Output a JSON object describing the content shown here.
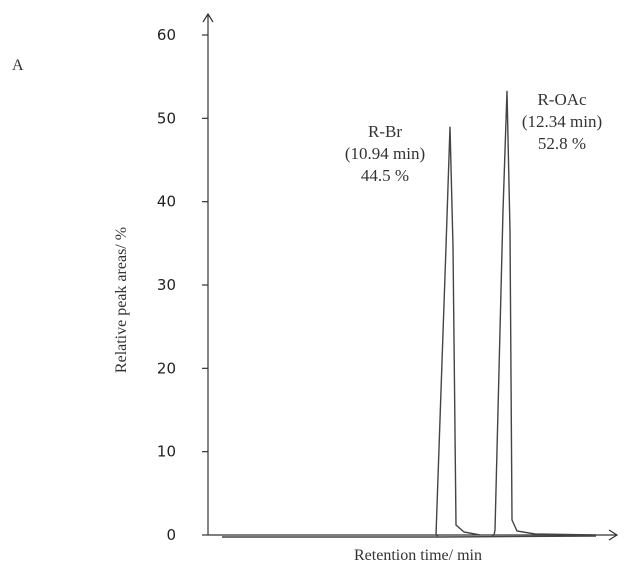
{
  "panel_label": "A",
  "chart_data": {
    "type": "line",
    "title": "",
    "xlabel": "Retention time/ min",
    "ylabel": "Relative peak areas/ %",
    "ylim": [
      0,
      60
    ],
    "yticks": [
      0,
      10,
      20,
      30,
      40,
      50,
      60
    ],
    "grid": false,
    "peaks": [
      {
        "retention_time": 10.94,
        "height": 49,
        "label": "R-Br",
        "time_label": "(10.94 min)",
        "area_label": "44.5 %"
      },
      {
        "retention_time": 12.34,
        "height": 53.3,
        "label": "R-OAc",
        "time_label": "(12.34 min)",
        "area_label": "52.8 %"
      }
    ]
  }
}
